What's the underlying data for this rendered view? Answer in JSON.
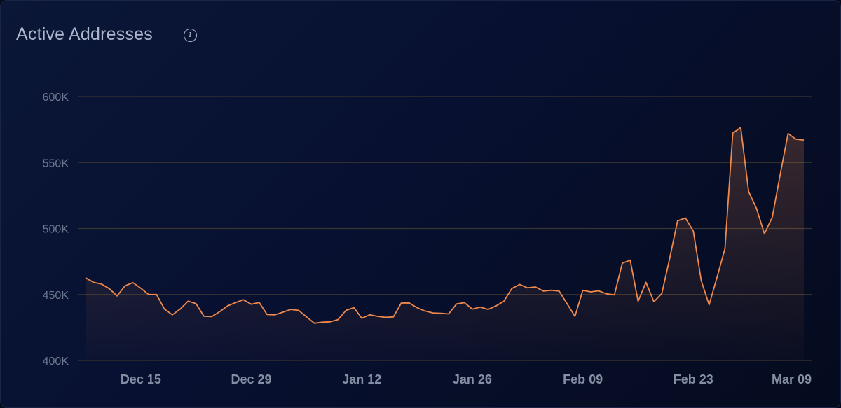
{
  "header": {
    "title": "Active Addresses",
    "info_icon": "info-circle-icon"
  },
  "colors": {
    "line": "#f0894a",
    "grid": "#3a3530",
    "background": "#071030"
  },
  "chart_data": {
    "type": "area",
    "title": "Active Addresses",
    "xlabel": "",
    "ylabel": "",
    "ylim": [
      400000,
      600000
    ],
    "grid": true,
    "yticks": [
      {
        "v": 400000,
        "label": "400K"
      },
      {
        "v": 450000,
        "label": "450K"
      },
      {
        "v": 500000,
        "label": "500K"
      },
      {
        "v": 550000,
        "label": "550K"
      },
      {
        "v": 600000,
        "label": "600K"
      }
    ],
    "xticks": [
      "Dec 15",
      "Dec 29",
      "Jan 12",
      "Jan 26",
      "Feb 09",
      "Feb 23",
      "Mar 09"
    ],
    "x": [
      "Dec 08",
      "Dec 09",
      "Dec 10",
      "Dec 11",
      "Dec 12",
      "Dec 13",
      "Dec 14",
      "Dec 15",
      "Dec 16",
      "Dec 17",
      "Dec 18",
      "Dec 19",
      "Dec 20",
      "Dec 21",
      "Dec 22",
      "Dec 23",
      "Dec 24",
      "Dec 25",
      "Dec 26",
      "Dec 27",
      "Dec 28",
      "Dec 29",
      "Dec 30",
      "Dec 31",
      "Jan 01",
      "Jan 02",
      "Jan 03",
      "Jan 04",
      "Jan 05",
      "Jan 06",
      "Jan 07",
      "Jan 08",
      "Jan 09",
      "Jan 10",
      "Jan 11",
      "Jan 12",
      "Jan 13",
      "Jan 14",
      "Jan 15",
      "Jan 16",
      "Jan 17",
      "Jan 18",
      "Jan 19",
      "Jan 20",
      "Jan 21",
      "Jan 22",
      "Jan 23",
      "Jan 24",
      "Jan 25",
      "Jan 26",
      "Jan 27",
      "Jan 28",
      "Jan 29",
      "Jan 30",
      "Jan 31",
      "Feb 01",
      "Feb 02",
      "Feb 03",
      "Feb 04",
      "Feb 05",
      "Feb 06",
      "Feb 07",
      "Feb 08",
      "Feb 09",
      "Feb 10",
      "Feb 11",
      "Feb 12",
      "Feb 13",
      "Feb 14",
      "Feb 15",
      "Feb 16",
      "Feb 17",
      "Feb 18",
      "Feb 19",
      "Feb 20",
      "Feb 21",
      "Feb 22",
      "Feb 23",
      "Feb 24",
      "Feb 25",
      "Feb 26",
      "Feb 27",
      "Feb 28",
      "Mar 01",
      "Mar 02",
      "Mar 03",
      "Mar 04",
      "Mar 05",
      "Mar 06",
      "Mar 07",
      "Mar 08",
      "Mar 09"
    ],
    "values": [
      462700,
      459200,
      458000,
      454500,
      448900,
      456500,
      459000,
      454800,
      450000,
      450000,
      439000,
      434600,
      439000,
      445000,
      443000,
      433500,
      433200,
      437000,
      441400,
      443800,
      446000,
      442600,
      444000,
      434800,
      434600,
      436600,
      438700,
      438000,
      433000,
      428200,
      429000,
      429300,
      431000,
      438000,
      440000,
      432000,
      434600,
      433400,
      432700,
      433000,
      443500,
      443600,
      440000,
      437500,
      436000,
      435700,
      435300,
      442800,
      443800,
      438900,
      440500,
      438700,
      441300,
      444900,
      454500,
      457600,
      455000,
      455700,
      452600,
      453200,
      452600,
      443000,
      433400,
      453200,
      452000,
      452800,
      450500,
      449700,
      473700,
      476000,
      444900,
      459200,
      444500,
      450700,
      477200,
      505800,
      508000,
      498000,
      460400,
      442200,
      463000,
      484700,
      572300,
      576500,
      528000,
      515200,
      496000,
      508500,
      540800,
      572000,
      567700,
      567000
    ]
  }
}
